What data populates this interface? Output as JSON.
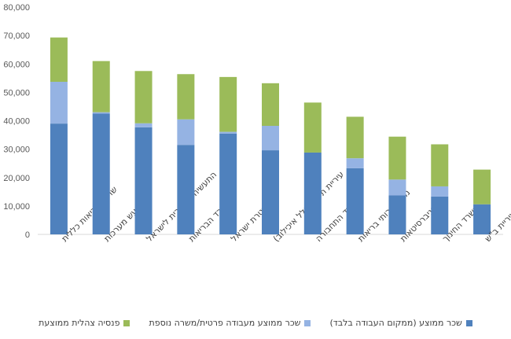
{
  "chart_data": {
    "type": "bar",
    "stacked": true,
    "categories": [
      "שרותי בריאות כללית",
      "תעש מערכות",
      "התעשיה האווירית לישראל",
      "משרד הבריאות",
      "משטרת ישראל",
      "עיריית ת\"א (כולל איכילוב)",
      "משרד התחבורה",
      "מכבי שרותי בריאות",
      "אוניברסיטאות",
      "משרד החינוך",
      "עיריית ב\"ש"
    ],
    "series": [
      {
        "name": "שכר ממוצע (ממקום העבודה בלבד)",
        "color": "#4f81bd",
        "values": [
          39000,
          42500,
          37700,
          31500,
          35500,
          29600,
          28800,
          23300,
          13700,
          13300,
          10600
        ]
      },
      {
        "name": "שכר ממוצע מעבודה פרטית/משרה נוספת",
        "color": "#95b3e3",
        "values": [
          14700,
          500,
          1400,
          9000,
          600,
          8600,
          0,
          3500,
          5600,
          3600,
          0
        ]
      },
      {
        "name": "פנסיה צהלית ממוצעת",
        "color": "#9bbb59",
        "values": [
          15600,
          18000,
          18400,
          15900,
          19300,
          15000,
          17600,
          14600,
          15100,
          14800,
          12200
        ]
      }
    ],
    "y_ticks": [
      "0",
      "10,000",
      "20,000",
      "30,000",
      "40,000",
      "50,000",
      "60,000",
      "70,000",
      "80,000"
    ],
    "ylim": [
      0,
      80000
    ],
    "legend_position": "bottom",
    "grid": false
  }
}
